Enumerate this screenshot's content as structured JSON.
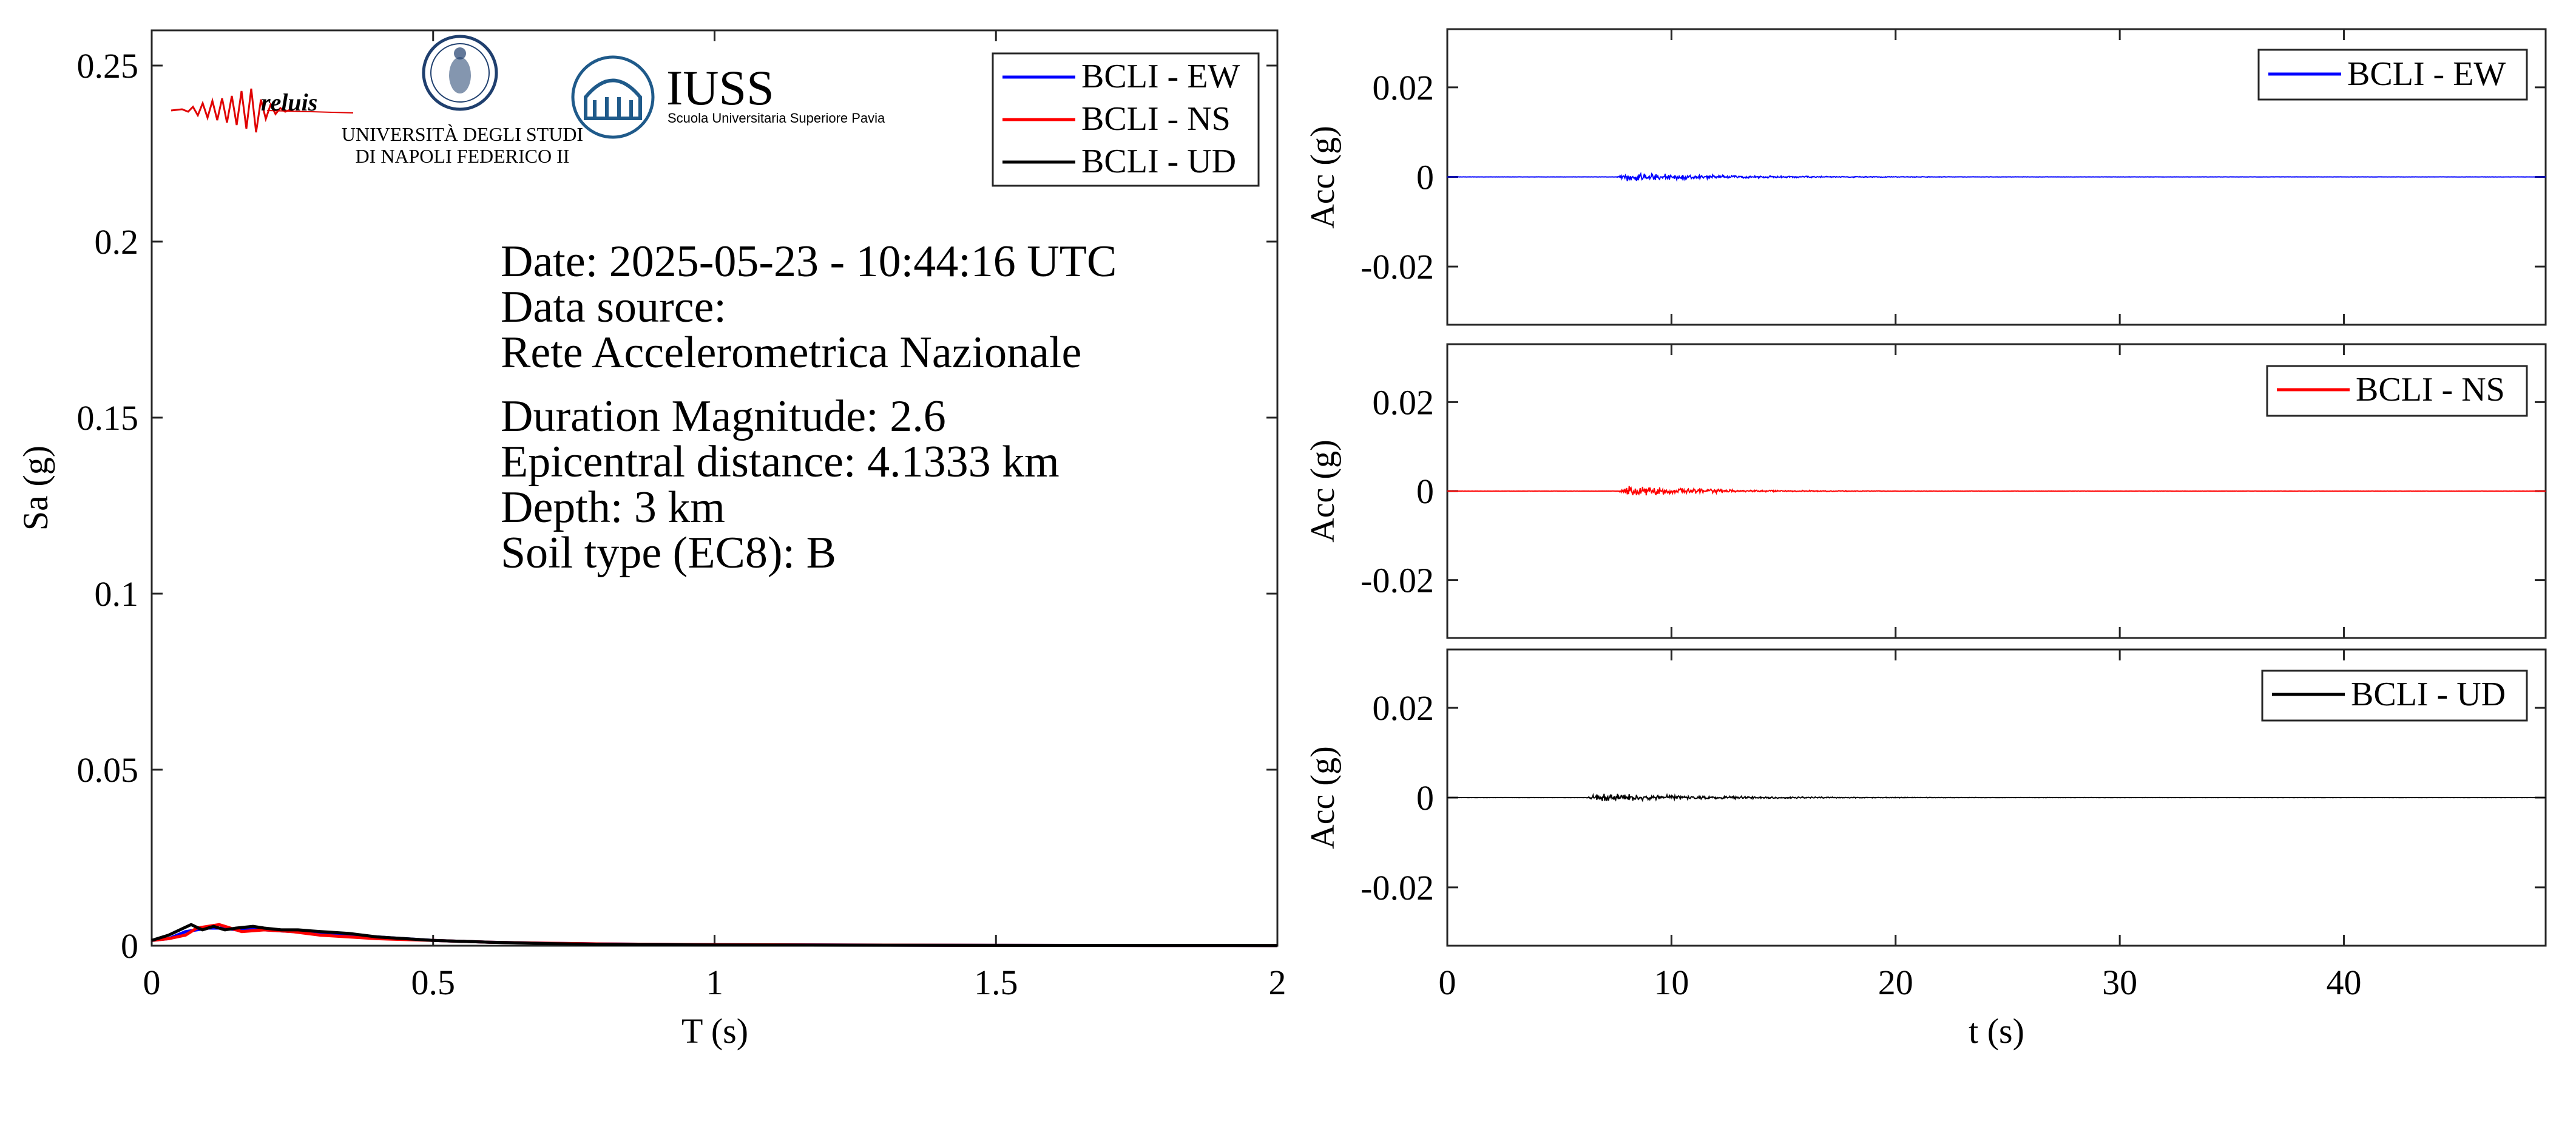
{
  "colors": {
    "EW": "#0000ff",
    "NS": "#ff0000",
    "UD": "#000000",
    "iuss": "#1f5a8a",
    "reluis": "#000080",
    "unina": "#1f3f6e"
  },
  "logos": {
    "reluis": "reluis",
    "unina_line1": "UNIVERSITÀ DEGLI STUDI",
    "unina_line2": "DI NAPOLI FEDERICO II",
    "iuss_title": "IUSS",
    "iuss_subtitle": "Scuola Universitaria Superiore Pavia"
  },
  "info": {
    "date": "Date: 2025-05-23 - 10:44:16 UTC",
    "source_label": "Data source:",
    "source_value": "Rete Accelerometrica Nazionale",
    "magnitude": "Duration Magnitude: 2.6",
    "distance": "Epicentral distance: 4.1333 km",
    "depth": "Depth: 3 km",
    "soil": "Soil type (EC8): B"
  },
  "chart_data": [
    {
      "type": "line",
      "id": "spectrum",
      "xlabel": "T (s)",
      "ylabel": "Sa (g)",
      "xlim": [
        0,
        2
      ],
      "ylim": [
        0,
        0.26
      ],
      "xticks": [
        0,
        0.5,
        1,
        1.5,
        2
      ],
      "xtick_labels": [
        "0",
        "0.5",
        "1",
        "1.5",
        "2"
      ],
      "yticks": [
        0,
        0.05,
        0.1,
        0.15,
        0.2,
        0.25
      ],
      "ytick_labels": [
        "0",
        "0.05",
        "0.1",
        "0.15",
        "0.2",
        "0.25"
      ],
      "grid": false,
      "legend": "top-right",
      "series": [
        {
          "name": "BCLI - EW",
          "color_key": "EW",
          "x": [
            0,
            0.03,
            0.06,
            0.08,
            0.1,
            0.13,
            0.15,
            0.18,
            0.2,
            0.25,
            0.3,
            0.35,
            0.4,
            0.5,
            0.6,
            0.7,
            0.8,
            1.0,
            1.5,
            2.0
          ],
          "y": [
            0.0015,
            0.002,
            0.004,
            0.0045,
            0.005,
            0.005,
            0.0045,
            0.005,
            0.0045,
            0.004,
            0.0035,
            0.003,
            0.0025,
            0.0015,
            0.001,
            0.0007,
            0.0005,
            0.0003,
            0.0001,
            5e-05
          ]
        },
        {
          "name": "BCLI - NS",
          "color_key": "NS",
          "x": [
            0,
            0.03,
            0.06,
            0.08,
            0.1,
            0.12,
            0.14,
            0.16,
            0.2,
            0.25,
            0.3,
            0.35,
            0.4,
            0.5,
            0.6,
            0.7,
            0.8,
            1.0,
            1.5,
            2.0
          ],
          "y": [
            0.0015,
            0.002,
            0.003,
            0.005,
            0.0055,
            0.006,
            0.005,
            0.004,
            0.0045,
            0.004,
            0.003,
            0.0025,
            0.002,
            0.0015,
            0.001,
            0.0007,
            0.0005,
            0.0003,
            0.0001,
            5e-05
          ]
        },
        {
          "name": "BCLI - UD",
          "color_key": "UD",
          "x": [
            0,
            0.03,
            0.05,
            0.07,
            0.09,
            0.11,
            0.13,
            0.15,
            0.18,
            0.2,
            0.23,
            0.26,
            0.3,
            0.35,
            0.4,
            0.5,
            0.6,
            0.7,
            0.8,
            1.0,
            1.5,
            2.0
          ],
          "y": [
            0.0015,
            0.003,
            0.0045,
            0.006,
            0.0045,
            0.0055,
            0.0045,
            0.005,
            0.0055,
            0.005,
            0.0045,
            0.0045,
            0.004,
            0.0035,
            0.0025,
            0.0015,
            0.001,
            0.0006,
            0.0004,
            0.0002,
            0.0001,
            5e-05
          ]
        }
      ]
    },
    {
      "type": "line",
      "id": "acc_ew",
      "ylabel": "Acc (g)",
      "xlim": [
        0,
        49
      ],
      "ylim": [
        -0.033,
        0.033
      ],
      "yticks": [
        -0.02,
        0,
        0.02
      ],
      "ytick_labels": [
        "-0.02",
        "0",
        "0.02"
      ],
      "legend": "top-right",
      "series": [
        {
          "name": "BCLI - EW",
          "color_key": "EW",
          "onset": 7.5,
          "peak": 0.0012,
          "decay": 4.5
        }
      ]
    },
    {
      "type": "line",
      "id": "acc_ns",
      "ylabel": "Acc (g)",
      "xlim": [
        0,
        49
      ],
      "ylim": [
        -0.033,
        0.033
      ],
      "yticks": [
        -0.02,
        0,
        0.02
      ],
      "ytick_labels": [
        "-0.02",
        "0",
        "0.02"
      ],
      "legend": "top-right",
      "series": [
        {
          "name": "BCLI - NS",
          "color_key": "NS",
          "onset": 7.5,
          "peak": 0.0014,
          "decay": 4.0
        }
      ]
    },
    {
      "type": "line",
      "id": "acc_ud",
      "xlabel": "t (s)",
      "ylabel": "Acc (g)",
      "xlim": [
        0,
        49
      ],
      "ylim": [
        -0.033,
        0.033
      ],
      "xticks": [
        0,
        10,
        20,
        30,
        40
      ],
      "xtick_labels": [
        "0",
        "10",
        "20",
        "30",
        "40"
      ],
      "yticks": [
        -0.02,
        0,
        0.02
      ],
      "ytick_labels": [
        "-0.02",
        "0",
        "0.02"
      ],
      "legend": "top-right",
      "series": [
        {
          "name": "BCLI - UD",
          "color_key": "UD",
          "onset": 6.2,
          "peak": 0.0012,
          "decay": 5.0
        }
      ]
    }
  ]
}
